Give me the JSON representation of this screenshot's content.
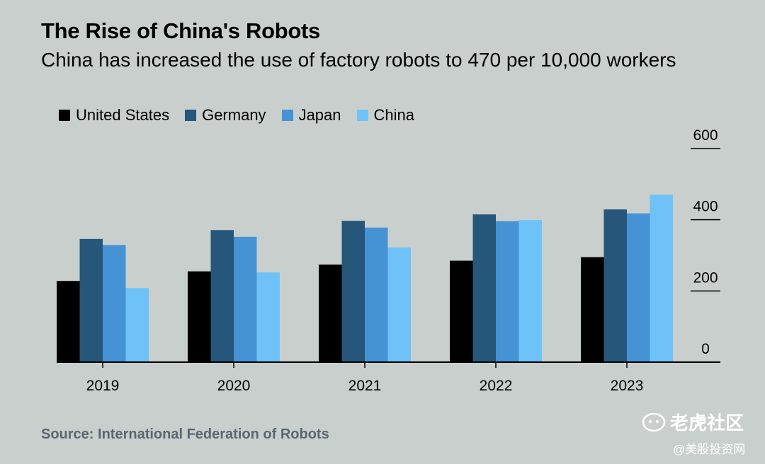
{
  "title": "The Rise of China's Robots",
  "subtitle": "China has increased the use of factory robots to 470 per 10,000 workers",
  "source": "Source: International Federation of Robots",
  "watermark": {
    "main": "老虎社区",
    "sub": "@美股投资网"
  },
  "colors": {
    "United States": "#000000",
    "Germany": "#26567a",
    "Japan": "#4593d5",
    "China": "#6ec2f7"
  },
  "chart_data": {
    "type": "bar",
    "categories": [
      "2019",
      "2020",
      "2021",
      "2022",
      "2023"
    ],
    "series": [
      {
        "name": "United States",
        "values": [
          228,
          255,
          274,
          285,
          295
        ]
      },
      {
        "name": "Germany",
        "values": [
          346,
          371,
          397,
          415,
          429
        ]
      },
      {
        "name": "Japan",
        "values": [
          329,
          352,
          378,
          396,
          418
        ]
      },
      {
        "name": "China",
        "values": [
          208,
          252,
          322,
          399,
          470
        ]
      }
    ],
    "ylim": [
      0,
      600
    ],
    "yticks": [
      0,
      200,
      400,
      600
    ],
    "legend": "top-left",
    "grid": false
  }
}
